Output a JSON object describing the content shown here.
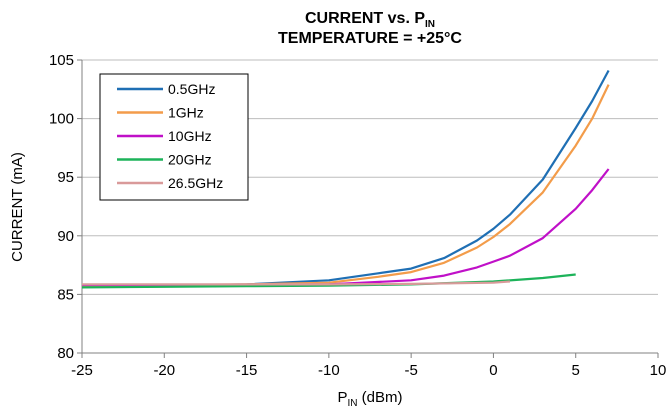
{
  "chart_data": {
    "type": "line",
    "title_line1_main": "CURRENT vs. P",
    "title_line1_sub": "IN",
    "title_line2": "TEMPERATURE = +25°C",
    "xlabel_main": "P",
    "xlabel_sub": "IN",
    "xlabel_rest": " (dBm)",
    "ylabel": "CURRENT (mA)",
    "xlim": [
      -25,
      10
    ],
    "ylim": [
      80,
      105
    ],
    "xticks": [
      -25,
      -20,
      -15,
      -10,
      -5,
      0,
      5,
      10
    ],
    "yticks": [
      80,
      85,
      90,
      95,
      100,
      105
    ],
    "grid": "horizontal",
    "legend_position": "top-left",
    "series": [
      {
        "name": "0.5GHz",
        "color": "#1f6fb4",
        "x": [
          -25,
          -20,
          -15,
          -10,
          -7,
          -5,
          -3,
          -1,
          0,
          1,
          3,
          5,
          6,
          7
        ],
        "y": [
          85.7,
          85.75,
          85.85,
          86.2,
          86.8,
          87.2,
          88.1,
          89.6,
          90.6,
          91.8,
          94.8,
          99.2,
          101.5,
          104.1
        ]
      },
      {
        "name": "1GHz",
        "color": "#f39c4a",
        "x": [
          -25,
          -20,
          -15,
          -10,
          -7,
          -5,
          -3,
          -1,
          0,
          1,
          3,
          5,
          6,
          7
        ],
        "y": [
          85.75,
          85.8,
          85.85,
          86.0,
          86.5,
          86.9,
          87.7,
          89.0,
          89.9,
          91.0,
          93.7,
          97.7,
          100.0,
          102.9
        ]
      },
      {
        "name": "10GHz",
        "color": "#c010c8",
        "x": [
          -25,
          -20,
          -15,
          -10,
          -5,
          -3,
          -1,
          0,
          1,
          3,
          5,
          6,
          7
        ],
        "y": [
          85.8,
          85.8,
          85.8,
          85.85,
          86.2,
          86.6,
          87.3,
          87.8,
          88.3,
          89.8,
          92.3,
          93.9,
          95.7
        ]
      },
      {
        "name": "20GHz",
        "color": "#1db35a",
        "x": [
          -25,
          -20,
          -15,
          -10,
          -5,
          0,
          3,
          5
        ],
        "y": [
          85.6,
          85.65,
          85.7,
          85.75,
          85.85,
          86.1,
          86.4,
          86.7
        ]
      },
      {
        "name": "26.5GHz",
        "color": "#d99a9a",
        "x": [
          -25,
          -20,
          -15,
          -10,
          -5,
          0,
          1
        ],
        "y": [
          85.85,
          85.85,
          85.85,
          85.85,
          85.9,
          86.0,
          86.1
        ]
      }
    ]
  }
}
